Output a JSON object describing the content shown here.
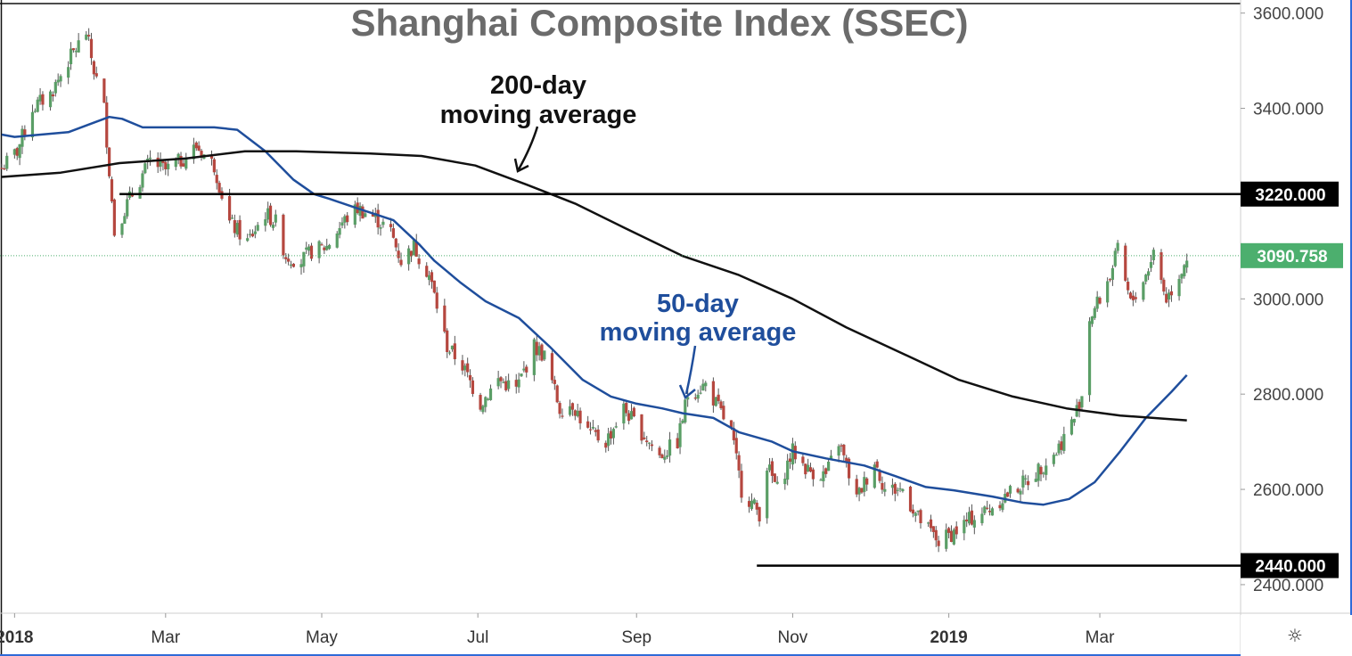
{
  "chart_data": {
    "type": "candlestick",
    "title": "Shanghai Composite Index (SSEC)",
    "ylim": [
      2340,
      3620
    ],
    "y_ticks": [
      "2400.000",
      "2600.000",
      "2800.000",
      "3000.000",
      "3400.000",
      "3600.000"
    ],
    "y_tick_values": [
      2400,
      2600,
      2800,
      3000,
      3400,
      3600
    ],
    "x_ticks": [
      {
        "label": "2018",
        "date": "2018-01-01",
        "bold": true
      },
      {
        "label": "Mar",
        "date": "2018-03-01",
        "bold": false
      },
      {
        "label": "May",
        "date": "2018-05-01",
        "bold": false
      },
      {
        "label": "Jul",
        "date": "2018-07-01",
        "bold": false
      },
      {
        "label": "Sep",
        "date": "2018-09-01",
        "bold": false
      },
      {
        "label": "Nov",
        "date": "2018-11-01",
        "bold": false
      },
      {
        "label": "2019",
        "date": "2019-01-01",
        "bold": true
      },
      {
        "label": "Mar",
        "date": "2019-03-01",
        "bold": false
      }
    ],
    "x_range": [
      "2017-12-27",
      "2019-04-25"
    ],
    "price_points": [
      [
        "2017-12-27",
        3275
      ],
      [
        "2018-01-02",
        3310
      ],
      [
        "2018-01-08",
        3400
      ],
      [
        "2018-01-15",
        3430
      ],
      [
        "2018-01-22",
        3500
      ],
      [
        "2018-01-29",
        3560
      ],
      [
        "2018-02-01",
        3480
      ],
      [
        "2018-02-05",
        3400
      ],
      [
        "2018-02-09",
        3140
      ],
      [
        "2018-02-14",
        3200
      ],
      [
        "2018-02-23",
        3290
      ],
      [
        "2018-03-01",
        3270
      ],
      [
        "2018-03-07",
        3290
      ],
      [
        "2018-03-13",
        3320
      ],
      [
        "2018-03-20",
        3280
      ],
      [
        "2018-03-26",
        3160
      ],
      [
        "2018-04-02",
        3120
      ],
      [
        "2018-04-09",
        3180
      ],
      [
        "2018-04-13",
        3160
      ],
      [
        "2018-04-17",
        3090
      ],
      [
        "2018-04-23",
        3080
      ],
      [
        "2018-04-27",
        3100
      ],
      [
        "2018-05-03",
        3110
      ],
      [
        "2018-05-09",
        3160
      ],
      [
        "2018-05-15",
        3190
      ],
      [
        "2018-05-22",
        3170
      ],
      [
        "2018-05-28",
        3140
      ],
      [
        "2018-06-01",
        3080
      ],
      [
        "2018-06-06",
        3110
      ],
      [
        "2018-06-12",
        3050
      ],
      [
        "2018-06-19",
        2900
      ],
      [
        "2018-06-25",
        2860
      ],
      [
        "2018-07-02",
        2780
      ],
      [
        "2018-07-09",
        2830
      ],
      [
        "2018-07-16",
        2810
      ],
      [
        "2018-07-23",
        2900
      ],
      [
        "2018-07-27",
        2880
      ],
      [
        "2018-08-02",
        2770
      ],
      [
        "2018-08-07",
        2780
      ],
      [
        "2018-08-13",
        2720
      ],
      [
        "2018-08-20",
        2700
      ],
      [
        "2018-08-27",
        2770
      ],
      [
        "2018-09-03",
        2720
      ],
      [
        "2018-09-10",
        2670
      ],
      [
        "2018-09-17",
        2700
      ],
      [
        "2018-09-21",
        2800
      ],
      [
        "2018-09-28",
        2820
      ],
      [
        "2018-10-08",
        2720
      ],
      [
        "2018-10-12",
        2600
      ],
      [
        "2018-10-19",
        2550
      ],
      [
        "2018-10-22",
        2650
      ],
      [
        "2018-10-26",
        2600
      ],
      [
        "2018-11-01",
        2680
      ],
      [
        "2018-11-07",
        2640
      ],
      [
        "2018-11-14",
        2630
      ],
      [
        "2018-11-19",
        2700
      ],
      [
        "2018-11-26",
        2580
      ],
      [
        "2018-12-03",
        2660
      ],
      [
        "2018-12-07",
        2600
      ],
      [
        "2018-12-14",
        2600
      ],
      [
        "2018-12-20",
        2540
      ],
      [
        "2018-12-28",
        2490
      ],
      [
        "2019-01-04",
        2514
      ],
      [
        "2019-01-10",
        2540
      ],
      [
        "2019-01-17",
        2560
      ],
      [
        "2019-01-24",
        2590
      ],
      [
        "2019-02-01",
        2620
      ],
      [
        "2019-02-12",
        2680
      ],
      [
        "2019-02-19",
        2750
      ],
      [
        "2019-02-22",
        2800
      ],
      [
        "2019-02-25",
        2960
      ],
      [
        "2019-03-01",
        3000
      ],
      [
        "2019-03-05",
        3050
      ],
      [
        "2019-03-08",
        3100
      ],
      [
        "2019-03-13",
        2990
      ],
      [
        "2019-03-19",
        3050
      ],
      [
        "2019-03-22",
        3100
      ],
      [
        "2019-03-27",
        3000
      ],
      [
        "2019-04-01",
        3050
      ],
      [
        "2019-04-04",
        3090
      ]
    ],
    "series": [
      {
        "name": "50-day moving average",
        "color": "#1f4e9c",
        "points": [
          [
            "2017-12-27",
            3345
          ],
          [
            "2018-01-01",
            3340
          ],
          [
            "2018-01-22",
            3350
          ],
          [
            "2018-02-01",
            3370
          ],
          [
            "2018-02-07",
            3382
          ],
          [
            "2018-02-12",
            3378
          ],
          [
            "2018-02-20",
            3360
          ],
          [
            "2018-03-01",
            3360
          ],
          [
            "2018-03-20",
            3360
          ],
          [
            "2018-03-29",
            3355
          ],
          [
            "2018-04-09",
            3310
          ],
          [
            "2018-04-20",
            3250
          ],
          [
            "2018-04-28",
            3220
          ],
          [
            "2018-05-04",
            3210
          ],
          [
            "2018-05-15",
            3190
          ],
          [
            "2018-05-29",
            3165
          ],
          [
            "2018-06-08",
            3115
          ],
          [
            "2018-06-14",
            3080
          ],
          [
            "2018-06-24",
            3035
          ],
          [
            "2018-07-04",
            2995
          ],
          [
            "2018-07-17",
            2960
          ],
          [
            "2018-07-29",
            2900
          ],
          [
            "2018-08-11",
            2830
          ],
          [
            "2018-08-22",
            2795
          ],
          [
            "2018-09-01",
            2780
          ],
          [
            "2018-09-11",
            2770
          ],
          [
            "2018-09-19",
            2760
          ],
          [
            "2018-10-01",
            2750
          ],
          [
            "2018-10-11",
            2720
          ],
          [
            "2018-10-24",
            2700
          ],
          [
            "2018-11-01",
            2680
          ],
          [
            "2018-11-14",
            2665
          ],
          [
            "2018-11-29",
            2650
          ],
          [
            "2018-12-11",
            2628
          ],
          [
            "2018-12-23",
            2605
          ],
          [
            "2019-01-03",
            2598
          ],
          [
            "2019-01-18",
            2585
          ],
          [
            "2019-01-30",
            2572
          ],
          [
            "2019-02-07",
            2568
          ],
          [
            "2019-02-17",
            2580
          ],
          [
            "2019-02-27",
            2615
          ],
          [
            "2019-03-09",
            2680
          ],
          [
            "2019-03-19",
            2750
          ],
          [
            "2019-03-29",
            2805
          ],
          [
            "2019-04-04",
            2840
          ]
        ]
      },
      {
        "name": "200-day moving average",
        "color": "#111111",
        "points": [
          [
            "2017-12-27",
            3256
          ],
          [
            "2018-01-19",
            3265
          ],
          [
            "2018-02-11",
            3285
          ],
          [
            "2018-03-09",
            3295
          ],
          [
            "2018-04-01",
            3310
          ],
          [
            "2018-04-21",
            3310
          ],
          [
            "2018-05-20",
            3305
          ],
          [
            "2018-06-09",
            3300
          ],
          [
            "2018-06-30",
            3280
          ],
          [
            "2018-07-20",
            3240
          ],
          [
            "2018-08-08",
            3200
          ],
          [
            "2018-08-27",
            3150
          ],
          [
            "2018-09-19",
            3090
          ],
          [
            "2018-10-11",
            3050
          ],
          [
            "2018-11-01",
            3000
          ],
          [
            "2018-11-22",
            2940
          ],
          [
            "2018-12-16",
            2880
          ],
          [
            "2019-01-05",
            2830
          ],
          [
            "2019-01-26",
            2795
          ],
          [
            "2019-02-16",
            2770
          ],
          [
            "2019-03-09",
            2755
          ],
          [
            "2019-04-04",
            2745
          ]
        ]
      }
    ],
    "horizontal_lines": [
      {
        "label": "3220.000",
        "value": 3220,
        "from": "2018-02-11",
        "to": "2019-04-25",
        "color": "#000000"
      },
      {
        "label": "2440.000",
        "value": 2440,
        "from": "2018-10-18",
        "to": "2019-04-25",
        "color": "#000000"
      }
    ],
    "last_price": {
      "label": "3090.758",
      "value": 3090.758,
      "color": "#4caf6e"
    },
    "annotations": [
      {
        "text_lines": [
          "200-day",
          "moving average"
        ],
        "color": "#111111"
      },
      {
        "text_lines": [
          "50-day",
          "moving average"
        ],
        "color": "#1f4e9c"
      }
    ],
    "colors": {
      "up": "#5a9e66",
      "down": "#b5473f",
      "grid_border": "#cfcfcf",
      "title": "#6b6b6b"
    },
    "grid": false,
    "legend": "none",
    "settings_icon": "gear-icon"
  }
}
